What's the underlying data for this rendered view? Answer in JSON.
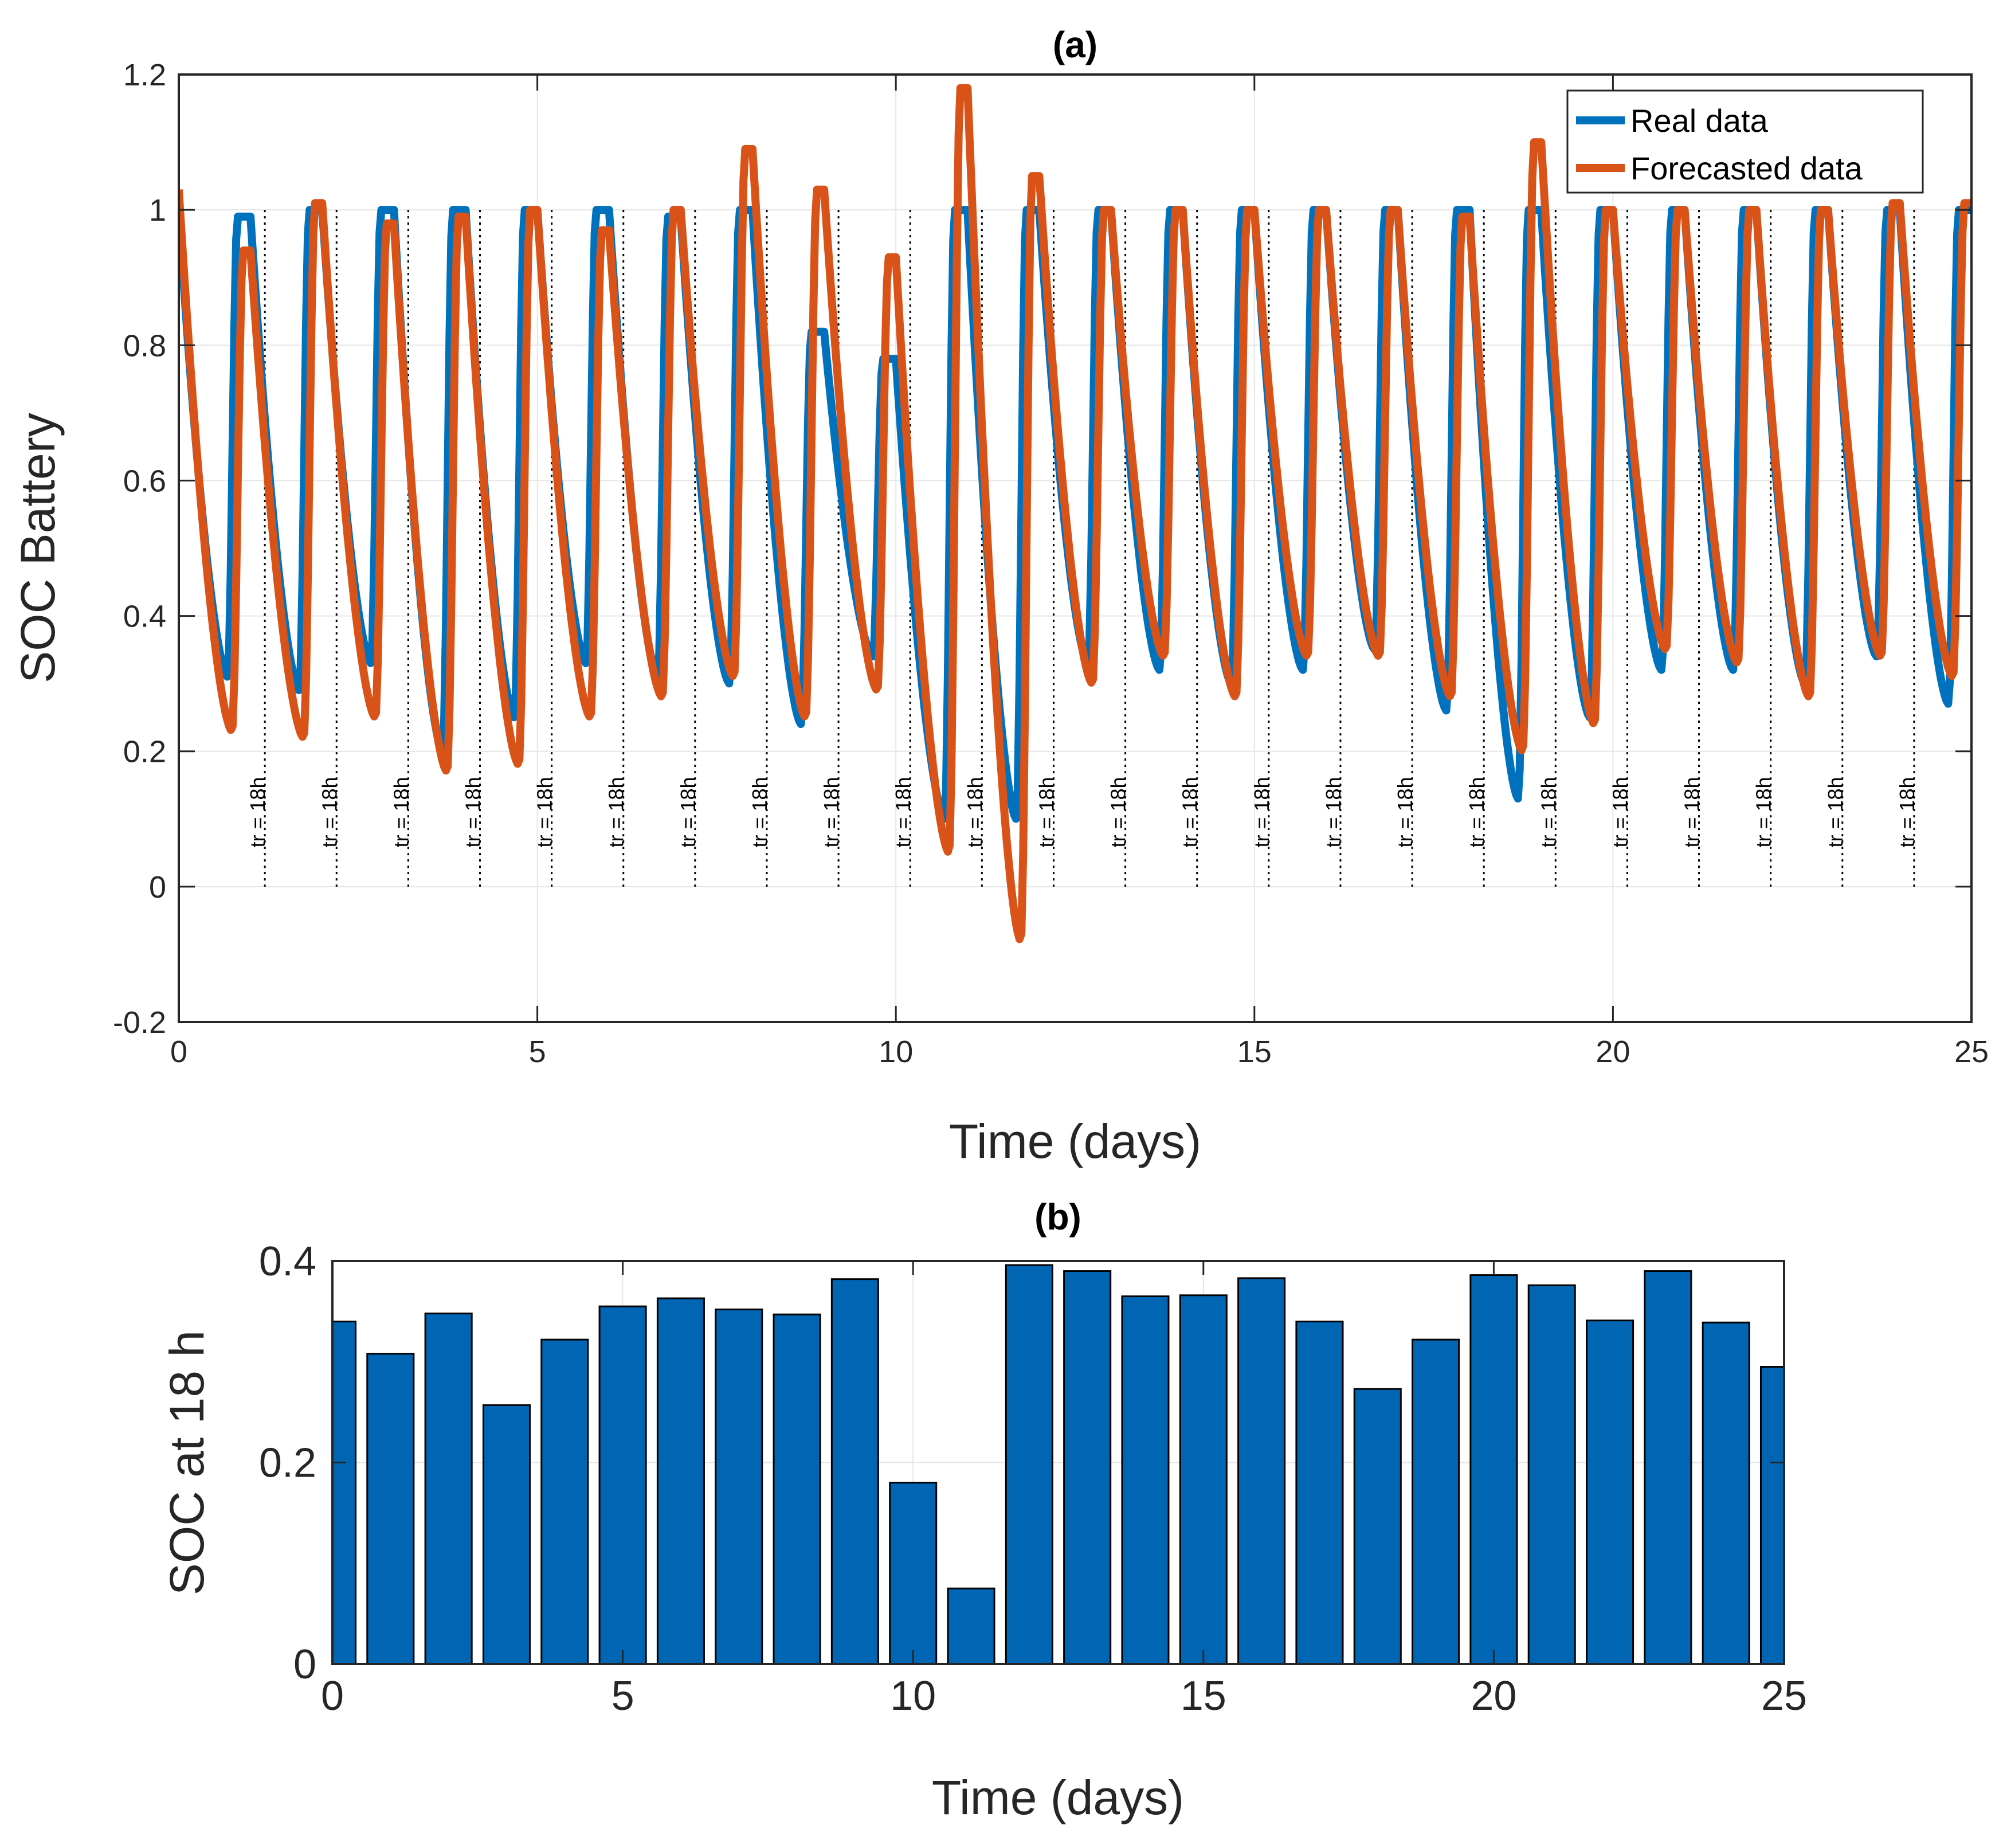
{
  "chart_data": [
    {
      "type": "line",
      "title": "(a)",
      "xlabel": "Time (days)",
      "ylabel": "SOC Battery",
      "xlim": [
        0,
        25
      ],
      "ylim": [
        -0.2,
        1.2
      ],
      "xticks": [
        "0",
        "5",
        "10",
        "15",
        "20",
        "25"
      ],
      "yticks": [
        "-0.2",
        "0",
        "0.2",
        "0.4",
        "0.6",
        "0.8",
        "1",
        "1.2"
      ],
      "grid": true,
      "legend_position": "top-right",
      "annotation_label": "tr = 18h",
      "annotation_days": [
        1.2,
        2.2,
        3.2,
        4.2,
        5.2,
        6.2,
        7.2,
        8.2,
        9.2,
        10.2,
        11.2,
        12.2,
        13.2,
        14.2,
        15.2,
        16.2,
        17.2,
        18.2,
        19.2,
        20.2,
        21.2,
        22.2,
        23.2,
        24.2
      ],
      "series": [
        {
          "name": "Real data",
          "color": "#0072BD",
          "daily_min": [
            0.31,
            0.29,
            0.33,
            0.2,
            0.25,
            0.33,
            0.31,
            0.3,
            0.24,
            0.34,
            0.1,
            0.1,
            0.33,
            0.32,
            0.3,
            0.32,
            0.35,
            0.26,
            0.13,
            0.25,
            0.32,
            0.32,
            0.3,
            0.34,
            0.27
          ],
          "daily_max": [
            1.0,
            0.99,
            1.0,
            1.0,
            1.0,
            1.0,
            1.0,
            0.99,
            1.0,
            0.82,
            0.78,
            1.0,
            1.0,
            1.0,
            1.0,
            1.0,
            1.0,
            1.0,
            1.0,
            1.0,
            1.0,
            1.0,
            1.0,
            1.0,
            1.0
          ]
        },
        {
          "name": "Forecasted data",
          "color": "#D95319",
          "daily_min": [
            0.23,
            0.22,
            0.25,
            0.17,
            0.18,
            0.25,
            0.28,
            0.31,
            0.25,
            0.29,
            0.05,
            -0.08,
            0.3,
            0.34,
            0.28,
            0.34,
            0.34,
            0.28,
            0.2,
            0.24,
            0.35,
            0.33,
            0.28,
            0.34,
            0.31
          ],
          "daily_max": [
            1.03,
            0.94,
            1.01,
            0.98,
            0.99,
            1.0,
            0.97,
            1.0,
            1.09,
            1.03,
            0.93,
            1.18,
            1.05,
            1.0,
            1.0,
            1.0,
            1.0,
            1.0,
            0.99,
            1.1,
            1.0,
            1.0,
            1.0,
            1.0,
            1.01
          ]
        }
      ]
    },
    {
      "type": "bar",
      "title": "(b)",
      "xlabel": "Time (days)",
      "ylabel": "SOC  at 18 h",
      "xlim": [
        0,
        25
      ],
      "ylim": [
        0,
        0.4
      ],
      "xticks": [
        "0",
        "5",
        "10",
        "15",
        "20",
        "25"
      ],
      "yticks": [
        "0",
        "0.2",
        "0.4"
      ],
      "grid": true,
      "bar_color": "#0066B3",
      "x": [
        0,
        1,
        2,
        3,
        4,
        5,
        6,
        7,
        8,
        9,
        10,
        11,
        12,
        13,
        14,
        15,
        16,
        17,
        18,
        19,
        20,
        21,
        22,
        23,
        24,
        25
      ],
      "values": [
        0.34,
        0.308,
        0.348,
        0.257,
        0.322,
        0.355,
        0.363,
        0.352,
        0.347,
        0.382,
        0.18,
        0.075,
        0.396,
        0.39,
        0.365,
        0.366,
        0.383,
        0.34,
        0.273,
        0.322,
        0.386,
        0.376,
        0.341,
        0.39,
        0.339,
        0.295
      ]
    }
  ]
}
